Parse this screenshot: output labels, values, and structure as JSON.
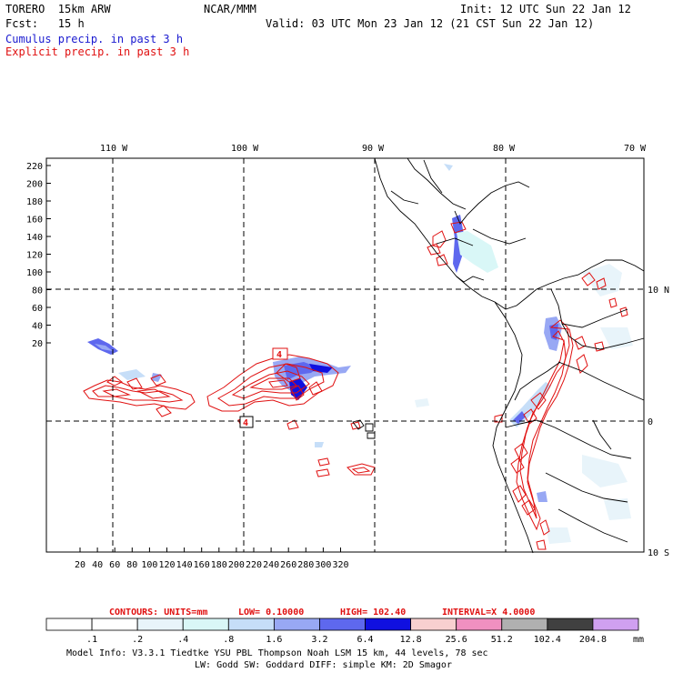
{
  "header": {
    "model": "TORERO  15km ARW",
    "center": "NCAR/MMM",
    "init": "Init: 12 UTC Sun 22 Jan 12",
    "fcst": "Fcst:   15 h",
    "valid": "Valid: 03 UTC Mon 23 Jan 12 (21 CST Sun 22 Jan 12)",
    "field1": "Cumulus precip. in past 3 h",
    "field2": "Explicit precip. in past 3 h"
  },
  "axes": {
    "top_ticks": [
      "110 W",
      "100 W",
      "90 W",
      "80 W",
      "70 W"
    ],
    "right_ticks": [
      "10 N",
      "0",
      "10 S"
    ],
    "left_ticks": [
      "220",
      "200",
      "180",
      "160",
      "140",
      "120",
      "100",
      "80",
      "60",
      "40",
      "20"
    ],
    "bottom_ticks": [
      "20",
      "40",
      "60",
      "80",
      "100",
      "120",
      "140",
      "160",
      "180",
      "200",
      "220",
      "240",
      "260",
      "280",
      "300",
      "320"
    ]
  },
  "contour_info": {
    "contours": "CONTOURS:  UNITS=mm",
    "low": "LOW= 0.10000",
    "high": "HIGH=  102.40",
    "interval": "INTERVAL=X  4.0000"
  },
  "colorbar": {
    "labels": [
      ".1",
      ".2",
      ".4",
      ".8",
      "1.6",
      "3.2",
      "6.4",
      "12.8",
      "25.6",
      "51.2",
      "102.4",
      "204.8"
    ],
    "units": "mm",
    "colors": [
      "#ffffff",
      "#ffffff",
      "#e8f4fa",
      "#d9f7f7",
      "#c6def8",
      "#98a8f4",
      "#5e68ee",
      "#1010e0",
      "#f8d0d0",
      "#f090c0",
      "#b0b0b0",
      "#404040",
      "#d0a0f0"
    ]
  },
  "features": {
    "contour_labels": [
      "4",
      "4"
    ]
  },
  "footer": {
    "line1": "Model Info: V3.3.1    Tiedtke YSU PBL  Thompson     Noah LSM  15 km,   44 levels,   78 sec",
    "line2": "LW: Godd SW: Goddard DIFF: simple KM: 2D Smagor"
  }
}
